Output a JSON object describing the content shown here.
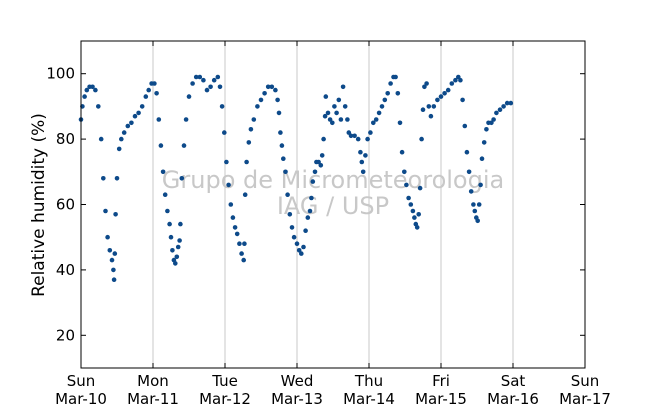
{
  "chart_data": {
    "type": "scatter",
    "title": "",
    "ylabel": "Relative humidity (%)",
    "xlabel": "",
    "ylim": [
      10,
      110
    ],
    "yticks": [
      20,
      40,
      60,
      80,
      100
    ],
    "xlim": [
      0,
      7
    ],
    "xticks": [
      {
        "day": "Sun",
        "date": "Mar-10"
      },
      {
        "day": "Mon",
        "date": "Mar-11"
      },
      {
        "day": "Tue",
        "date": "Mar-12"
      },
      {
        "day": "Wed",
        "date": "Mar-13"
      },
      {
        "day": "Thu",
        "date": "Mar-14"
      },
      {
        "day": "Fri",
        "date": "Mar-15"
      },
      {
        "day": "Sat",
        "date": "Mar-16"
      },
      {
        "day": "Sun",
        "date": "Mar-17"
      }
    ],
    "grid": "vertical",
    "watermark": [
      "Grupo de Micrometeorologia",
      "IAG / USP"
    ],
    "marker_color": "#0d4a8a",
    "series": [
      {
        "points": [
          [
            0.0,
            86
          ],
          [
            0.02,
            90
          ],
          [
            0.05,
            93
          ],
          [
            0.08,
            95
          ],
          [
            0.12,
            96
          ],
          [
            0.16,
            96
          ],
          [
            0.2,
            95
          ],
          [
            0.24,
            90
          ],
          [
            0.28,
            80
          ],
          [
            0.31,
            68
          ],
          [
            0.34,
            58
          ],
          [
            0.37,
            50
          ],
          [
            0.4,
            46
          ],
          [
            0.43,
            43
          ],
          [
            0.45,
            40
          ],
          [
            0.46,
            37
          ],
          [
            0.47,
            45
          ],
          [
            0.48,
            57
          ],
          [
            0.5,
            68
          ],
          [
            0.53,
            77
          ],
          [
            0.56,
            80
          ],
          [
            0.6,
            82
          ],
          [
            0.65,
            84
          ],
          [
            0.7,
            85
          ],
          [
            0.75,
            87
          ],
          [
            0.8,
            88
          ],
          [
            0.85,
            90
          ],
          [
            0.9,
            93
          ],
          [
            0.94,
            95
          ],
          [
            0.98,
            97
          ],
          [
            1.02,
            97
          ],
          [
            1.05,
            94
          ],
          [
            1.08,
            86
          ],
          [
            1.11,
            78
          ],
          [
            1.14,
            70
          ],
          [
            1.17,
            63
          ],
          [
            1.2,
            58
          ],
          [
            1.23,
            54
          ],
          [
            1.25,
            50
          ],
          [
            1.27,
            46
          ],
          [
            1.29,
            43
          ],
          [
            1.31,
            42
          ],
          [
            1.33,
            44
          ],
          [
            1.35,
            47
          ],
          [
            1.37,
            49
          ],
          [
            1.38,
            54
          ],
          [
            1.4,
            68
          ],
          [
            1.43,
            78
          ],
          [
            1.46,
            86
          ],
          [
            1.5,
            93
          ],
          [
            1.55,
            97
          ],
          [
            1.6,
            99
          ],
          [
            1.65,
            99
          ],
          [
            1.7,
            98
          ],
          [
            1.75,
            95
          ],
          [
            1.8,
            96
          ],
          [
            1.85,
            98
          ],
          [
            1.9,
            99
          ],
          [
            1.93,
            96
          ],
          [
            1.96,
            90
          ],
          [
            1.99,
            82
          ],
          [
            2.02,
            73
          ],
          [
            2.05,
            66
          ],
          [
            2.08,
            60
          ],
          [
            2.11,
            56
          ],
          [
            2.14,
            53
          ],
          [
            2.17,
            51
          ],
          [
            2.2,
            48
          ],
          [
            2.23,
            45
          ],
          [
            2.26,
            43
          ],
          [
            2.27,
            48
          ],
          [
            2.28,
            63
          ],
          [
            2.3,
            73
          ],
          [
            2.33,
            79
          ],
          [
            2.36,
            83
          ],
          [
            2.4,
            86
          ],
          [
            2.45,
            90
          ],
          [
            2.5,
            92
          ],
          [
            2.55,
            94
          ],
          [
            2.6,
            96
          ],
          [
            2.65,
            96
          ],
          [
            2.7,
            95
          ],
          [
            2.73,
            92
          ],
          [
            2.75,
            88
          ],
          [
            2.77,
            82
          ],
          [
            2.79,
            78
          ],
          [
            2.81,
            74
          ],
          [
            2.84,
            70
          ],
          [
            2.87,
            63
          ],
          [
            2.9,
            57
          ],
          [
            2.93,
            53
          ],
          [
            2.96,
            50
          ],
          [
            3.0,
            48
          ],
          [
            3.03,
            46
          ],
          [
            3.06,
            45
          ],
          [
            3.09,
            47
          ],
          [
            3.12,
            52
          ],
          [
            3.15,
            56
          ],
          [
            3.18,
            58
          ],
          [
            3.2,
            62
          ],
          [
            3.22,
            67
          ],
          [
            3.25,
            70
          ],
          [
            3.27,
            73
          ],
          [
            3.3,
            73
          ],
          [
            3.33,
            72
          ],
          [
            3.35,
            75
          ],
          [
            3.37,
            80
          ],
          [
            3.39,
            87
          ],
          [
            3.4,
            93
          ],
          [
            3.43,
            88
          ],
          [
            3.46,
            86
          ],
          [
            3.49,
            85
          ],
          [
            3.52,
            90
          ],
          [
            3.55,
            88
          ],
          [
            3.58,
            92
          ],
          [
            3.61,
            86
          ],
          [
            3.64,
            96
          ],
          [
            3.67,
            90
          ],
          [
            3.7,
            86
          ],
          [
            3.72,
            82
          ],
          [
            3.75,
            81
          ],
          [
            3.8,
            81
          ],
          [
            3.85,
            80
          ],
          [
            3.88,
            76
          ],
          [
            3.9,
            73
          ],
          [
            3.92,
            70
          ],
          [
            3.95,
            75
          ],
          [
            3.98,
            80
          ],
          [
            4.02,
            82
          ],
          [
            4.06,
            85
          ],
          [
            4.1,
            86
          ],
          [
            4.14,
            88
          ],
          [
            4.18,
            90
          ],
          [
            4.22,
            92
          ],
          [
            4.26,
            94
          ],
          [
            4.3,
            97
          ],
          [
            4.34,
            99
          ],
          [
            4.37,
            99
          ],
          [
            4.4,
            94
          ],
          [
            4.43,
            85
          ],
          [
            4.46,
            76
          ],
          [
            4.49,
            70
          ],
          [
            4.52,
            66
          ],
          [
            4.55,
            62
          ],
          [
            4.58,
            60
          ],
          [
            4.61,
            58
          ],
          [
            4.63,
            56
          ],
          [
            4.65,
            54
          ],
          [
            4.67,
            53
          ],
          [
            4.69,
            57
          ],
          [
            4.71,
            65
          ],
          [
            4.73,
            80
          ],
          [
            4.75,
            89
          ],
          [
            4.77,
            96
          ],
          [
            4.8,
            97
          ],
          [
            4.83,
            90
          ],
          [
            4.86,
            87
          ],
          [
            4.9,
            90
          ],
          [
            4.95,
            92
          ],
          [
            5.0,
            93
          ],
          [
            5.05,
            94
          ],
          [
            5.1,
            95
          ],
          [
            5.15,
            97
          ],
          [
            5.2,
            98
          ],
          [
            5.24,
            99
          ],
          [
            5.27,
            98
          ],
          [
            5.3,
            92
          ],
          [
            5.33,
            84
          ],
          [
            5.36,
            76
          ],
          [
            5.39,
            70
          ],
          [
            5.42,
            64
          ],
          [
            5.45,
            60
          ],
          [
            5.47,
            58
          ],
          [
            5.49,
            56
          ],
          [
            5.51,
            55
          ],
          [
            5.53,
            60
          ],
          [
            5.55,
            66
          ],
          [
            5.57,
            74
          ],
          [
            5.6,
            79
          ],
          [
            5.63,
            83
          ],
          [
            5.66,
            85
          ],
          [
            5.7,
            85
          ],
          [
            5.73,
            86
          ],
          [
            5.77,
            88
          ],
          [
            5.82,
            89
          ],
          [
            5.87,
            90
          ],
          [
            5.92,
            91
          ],
          [
            5.97,
            91
          ]
        ]
      }
    ]
  }
}
